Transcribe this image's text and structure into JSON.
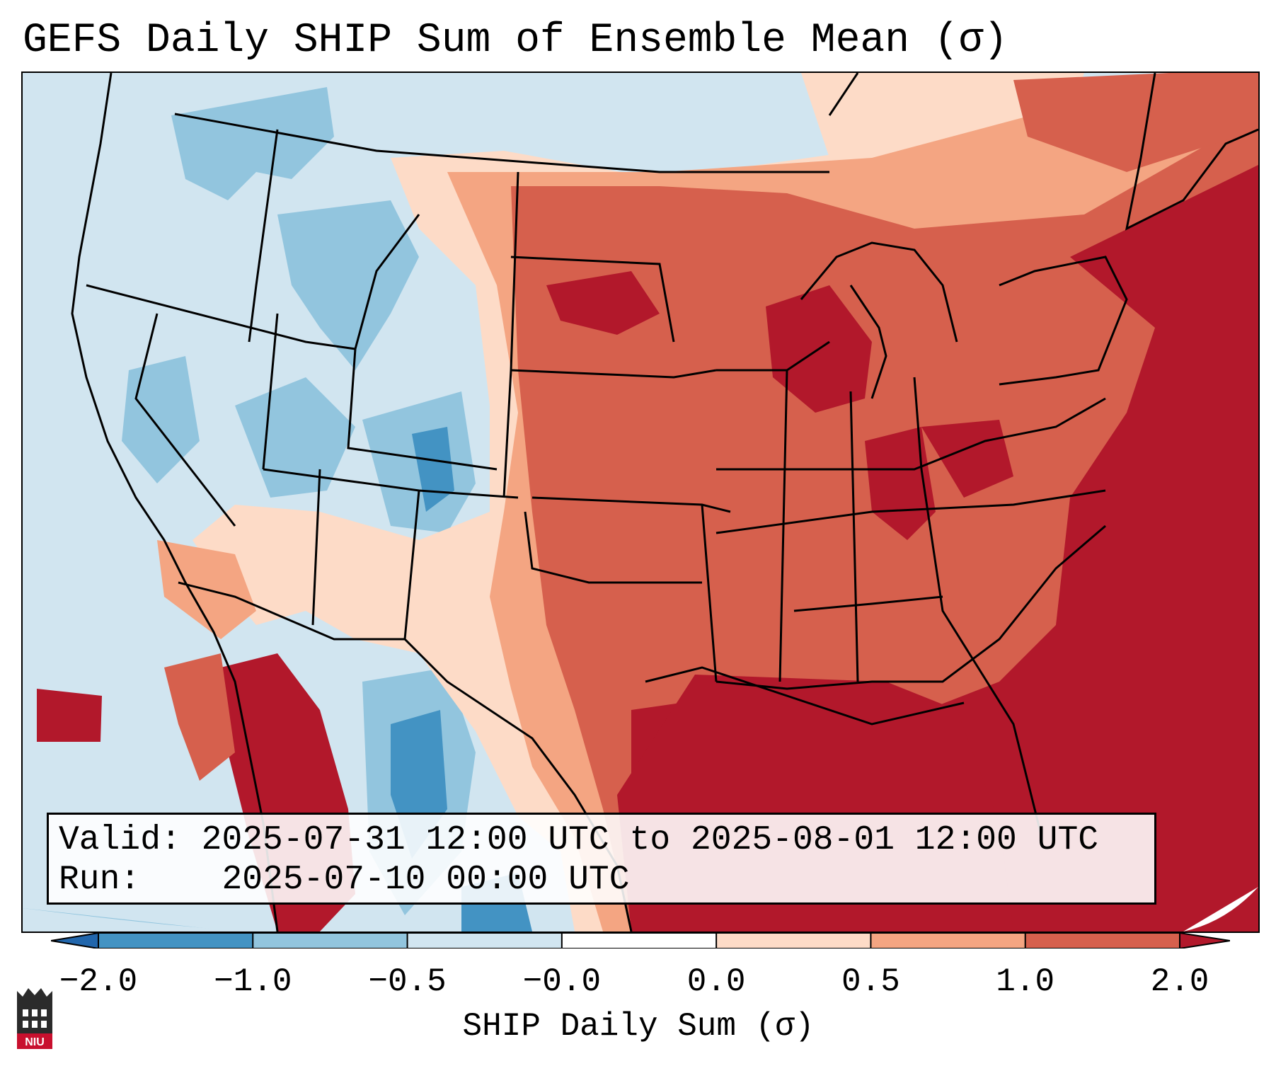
{
  "title": "GEFS Daily SHIP Sum of Ensemble Mean (σ)",
  "info": {
    "valid_label": "Valid:",
    "valid_value": "2025-07-31 12:00 UTC to 2025-08-01 12:00 UTC",
    "run_label": "Run:",
    "run_value": "2025-07-10 00:00 UTC"
  },
  "colorbar": {
    "label": "SHIP Daily Sum (σ)",
    "ticks": [
      "−2.0",
      "−1.0",
      "−0.5",
      "−0.0",
      "0.0",
      "0.5",
      "1.0",
      "2.0"
    ],
    "colors": [
      "#2166ac",
      "#4393c3",
      "#92c5de",
      "#d1e5f0",
      "#ffffff",
      "#fddbc7",
      "#f4a582",
      "#d6604d",
      "#b2182b"
    ],
    "extend": "both"
  },
  "logo": {
    "text": "NIU",
    "color": "#c8102e"
  },
  "map": {
    "projection": "Lambert conformal, CONUS",
    "regions": "US states, Canadian provinces, Mexico, Gulf of Mexico, Atlantic Ocean",
    "pattern": "negative (blue) over western US and northern Mexico plateau; positive (red) over central and eastern US, Gulf and Atlantic"
  }
}
